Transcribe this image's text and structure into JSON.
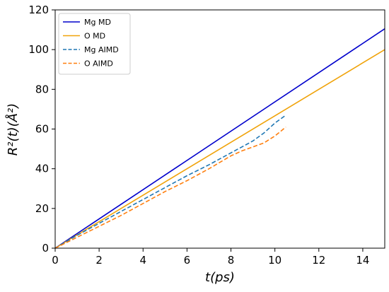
{
  "chart_data": {
    "type": "line",
    "title": "",
    "xlabel": "t(ps)",
    "ylabel": "R²(t)(Å²)",
    "xlim": [
      0,
      15
    ],
    "ylim": [
      0,
      120
    ],
    "xticks": [
      0,
      2,
      4,
      6,
      8,
      10,
      12,
      14
    ],
    "yticks": [
      0,
      20,
      40,
      60,
      80,
      100,
      120
    ],
    "grid": false,
    "legend_position": "top-left",
    "series": [
      {
        "name": "Mg MD",
        "color": "#0000cc",
        "style": "solid",
        "x": [
          0,
          15
        ],
        "y": [
          0,
          110.5
        ]
      },
      {
        "name": "O MD",
        "color": "#f0a30a",
        "style": "solid",
        "x": [
          0,
          15
        ],
        "y": [
          0,
          100
        ]
      },
      {
        "name": "Mg AIMD",
        "color": "#1f77b4",
        "style": "dashed",
        "x": [
          0,
          1,
          2,
          3,
          4,
          5,
          6,
          7,
          8,
          8.5,
          9,
          9.5,
          10,
          10.5
        ],
        "y": [
          0,
          6.5,
          12.5,
          18.5,
          24.5,
          30.5,
          36.5,
          42,
          48,
          51,
          54,
          58,
          63,
          67
        ]
      },
      {
        "name": "O AIMD",
        "color": "#ff7f0e",
        "style": "dashed",
        "x": [
          0,
          1,
          2,
          3,
          4,
          5,
          6,
          7,
          8,
          8.5,
          9,
          9.5,
          10,
          10.5
        ],
        "y": [
          0,
          5.5,
          11,
          16.5,
          22.5,
          28.5,
          34,
          40,
          46.5,
          49,
          51,
          53,
          56.5,
          61
        ]
      }
    ]
  }
}
